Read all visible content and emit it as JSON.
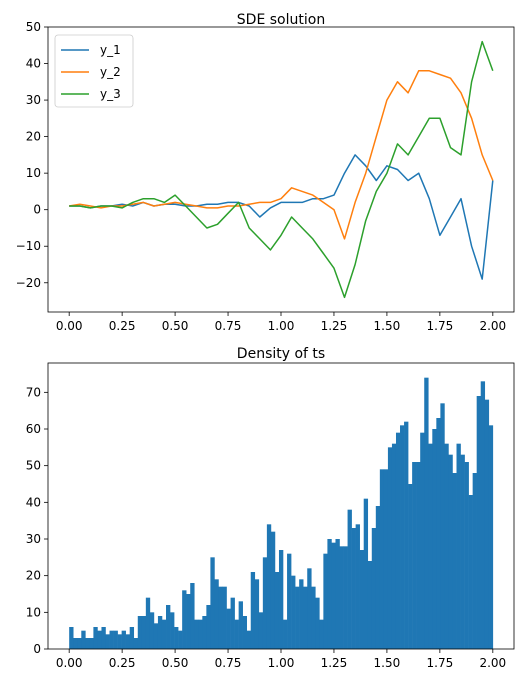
{
  "chart_data": [
    {
      "type": "line",
      "title": "SDE solution",
      "xlabel": "",
      "ylabel": "",
      "xlim": [
        -0.1,
        2.1
      ],
      "ylim": [
        -28,
        50
      ],
      "xticks": [
        "0.00",
        "0.25",
        "0.50",
        "0.75",
        "1.00",
        "1.25",
        "1.50",
        "1.75",
        "2.00"
      ],
      "yticks": [
        "−20",
        "−10",
        "0",
        "10",
        "20",
        "30",
        "40",
        "50"
      ],
      "legend": "top-left",
      "grid": false,
      "series": [
        {
          "name": "y_1",
          "color": "#1f77b4",
          "x": [
            0.0,
            0.05,
            0.1,
            0.15,
            0.2,
            0.25,
            0.3,
            0.35,
            0.4,
            0.45,
            0.5,
            0.55,
            0.6,
            0.65,
            0.7,
            0.75,
            0.8,
            0.85,
            0.9,
            0.95,
            1.0,
            1.05,
            1.1,
            1.15,
            1.2,
            1.25,
            1.3,
            1.35,
            1.4,
            1.45,
            1.5,
            1.55,
            1.6,
            1.65,
            1.7,
            1.75,
            1.8,
            1.85,
            1.9,
            1.95,
            2.0
          ],
          "y": [
            1,
            1,
            0.5,
            1,
            1,
            1.5,
            1,
            2,
            1,
            1.5,
            1.5,
            1,
            1,
            1.5,
            1.5,
            2,
            2,
            1,
            -2,
            0.5,
            2,
            2,
            2,
            3,
            3,
            4,
            10,
            15,
            12,
            8,
            12,
            11,
            8,
            10,
            3,
            -7,
            -2,
            3,
            -10,
            -19,
            8
          ]
        },
        {
          "name": "y_2",
          "color": "#ff7f0e",
          "x": [
            0.0,
            0.05,
            0.1,
            0.15,
            0.2,
            0.25,
            0.3,
            0.35,
            0.4,
            0.45,
            0.5,
            0.55,
            0.6,
            0.65,
            0.7,
            0.75,
            0.8,
            0.85,
            0.9,
            0.95,
            1.0,
            1.05,
            1.1,
            1.15,
            1.2,
            1.25,
            1.3,
            1.35,
            1.4,
            1.45,
            1.5,
            1.55,
            1.6,
            1.65,
            1.7,
            1.75,
            1.8,
            1.85,
            1.9,
            1.95,
            2.0
          ],
          "y": [
            1,
            1.5,
            1,
            0.5,
            1,
            1,
            1.5,
            2,
            1,
            1.5,
            2,
            1.5,
            1,
            0.5,
            0.5,
            1,
            1,
            1.5,
            2,
            2,
            3,
            6,
            5,
            4,
            2,
            0,
            -8,
            2,
            10,
            20,
            30,
            35,
            32,
            38,
            38,
            37,
            36,
            32,
            25,
            15,
            8
          ]
        },
        {
          "name": "y_3",
          "color": "#2ca02c",
          "x": [
            0.0,
            0.05,
            0.1,
            0.15,
            0.2,
            0.25,
            0.3,
            0.35,
            0.4,
            0.45,
            0.5,
            0.55,
            0.6,
            0.65,
            0.7,
            0.75,
            0.8,
            0.85,
            0.9,
            0.95,
            1.0,
            1.05,
            1.1,
            1.15,
            1.2,
            1.25,
            1.3,
            1.35,
            1.4,
            1.45,
            1.5,
            1.55,
            1.6,
            1.65,
            1.7,
            1.75,
            1.8,
            1.85,
            1.9,
            1.95,
            2.0
          ],
          "y": [
            1,
            1,
            0.5,
            1,
            1,
            0.5,
            2,
            3,
            3,
            2,
            4,
            1,
            -2,
            -5,
            -4,
            -1,
            2,
            -5,
            -8,
            -11,
            -7,
            -2,
            -5,
            -8,
            -12,
            -16,
            -24,
            -15,
            -3,
            5,
            10,
            18,
            15,
            20,
            25,
            25,
            17,
            15,
            35,
            46,
            38
          ]
        }
      ]
    },
    {
      "type": "bar",
      "title": "Density of ts",
      "xlabel": "",
      "ylabel": "",
      "xlim": [
        -0.1,
        2.1
      ],
      "ylim": [
        0,
        78
      ],
      "xticks": [
        "0.00",
        "0.25",
        "0.50",
        "0.75",
        "1.00",
        "1.25",
        "1.50",
        "1.75",
        "2.00"
      ],
      "yticks": [
        "0",
        "10",
        "20",
        "30",
        "40",
        "50",
        "60",
        "70"
      ],
      "color": "#1f77b4",
      "bins_start": 0.0,
      "bin_width": 0.02,
      "values": [
        6,
        3,
        3,
        5,
        3,
        3,
        6,
        5,
        6,
        4,
        5,
        5,
        4,
        5,
        4,
        6,
        3,
        9,
        9,
        14,
        10,
        7,
        9,
        8,
        12,
        10,
        6,
        5,
        16,
        15,
        18,
        8,
        8,
        9,
        12,
        25,
        19,
        17,
        17,
        11,
        14,
        8,
        13,
        9,
        5,
        21,
        19,
        10,
        25,
        34,
        32,
        21,
        27,
        8,
        26,
        20,
        17,
        19,
        17,
        22,
        17,
        14,
        8,
        26,
        30,
        29,
        30,
        28,
        28,
        38,
        33,
        34,
        27,
        41,
        24,
        33,
        39,
        49,
        49,
        55,
        56,
        59,
        61,
        62,
        45,
        51,
        51,
        59,
        74,
        56,
        60,
        63,
        67,
        56,
        53,
        48,
        56,
        53,
        51,
        42,
        48,
        69,
        73,
        68,
        61
      ]
    }
  ]
}
